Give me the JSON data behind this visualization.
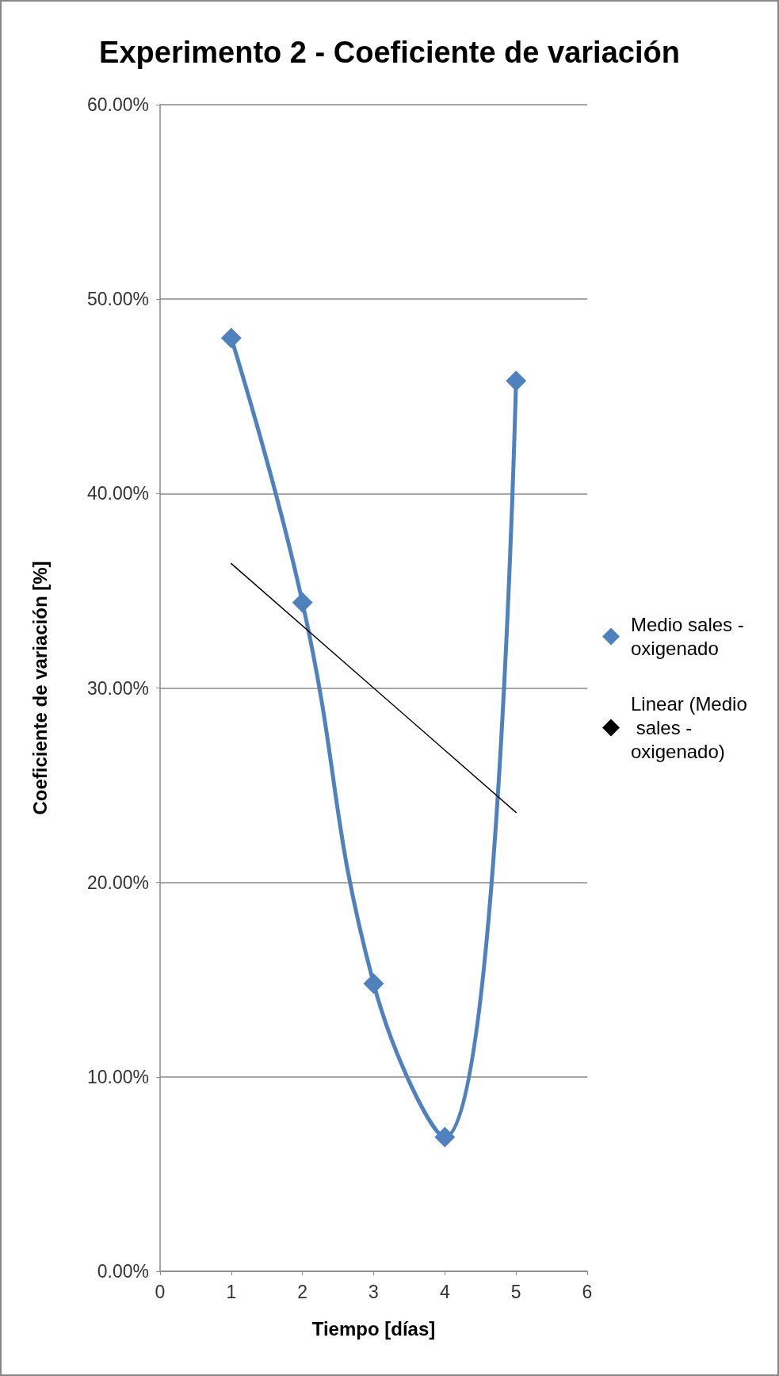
{
  "chart_data": {
    "type": "line",
    "title": "Experimento 2 - Coeficiente de variación",
    "xlabel": "Tiempo [días]",
    "ylabel": "Coeficiente de variación [%]",
    "xlim": [
      0,
      6
    ],
    "xticks": [
      0,
      1,
      2,
      3,
      4,
      5,
      6
    ],
    "ylim": [
      0,
      60
    ],
    "yticks": [
      {
        "value": 0,
        "label": "0.00%"
      },
      {
        "value": 10,
        "label": "10.00%"
      },
      {
        "value": 20,
        "label": "20.00%"
      },
      {
        "value": 30,
        "label": "30.00%"
      },
      {
        "value": 40,
        "label": "40.00%"
      },
      {
        "value": 50,
        "label": "50.00%"
      },
      {
        "value": 60,
        "label": "60.00%"
      }
    ],
    "series": [
      {
        "name": "Medio sales - oxigenado",
        "color": "#4f81bd",
        "x": [
          1,
          2,
          3,
          4,
          5
        ],
        "values": [
          48,
          34.4,
          14.8,
          6.9,
          45.8
        ],
        "marker": "diamond"
      },
      {
        "name": "Linear (Medio sales - oxigenado)",
        "color": "#000000",
        "x": [
          1,
          5
        ],
        "values": [
          36.4,
          23.6
        ],
        "marker": "none"
      }
    ],
    "grid": "y",
    "legend": "right",
    "line_style": "solid"
  }
}
